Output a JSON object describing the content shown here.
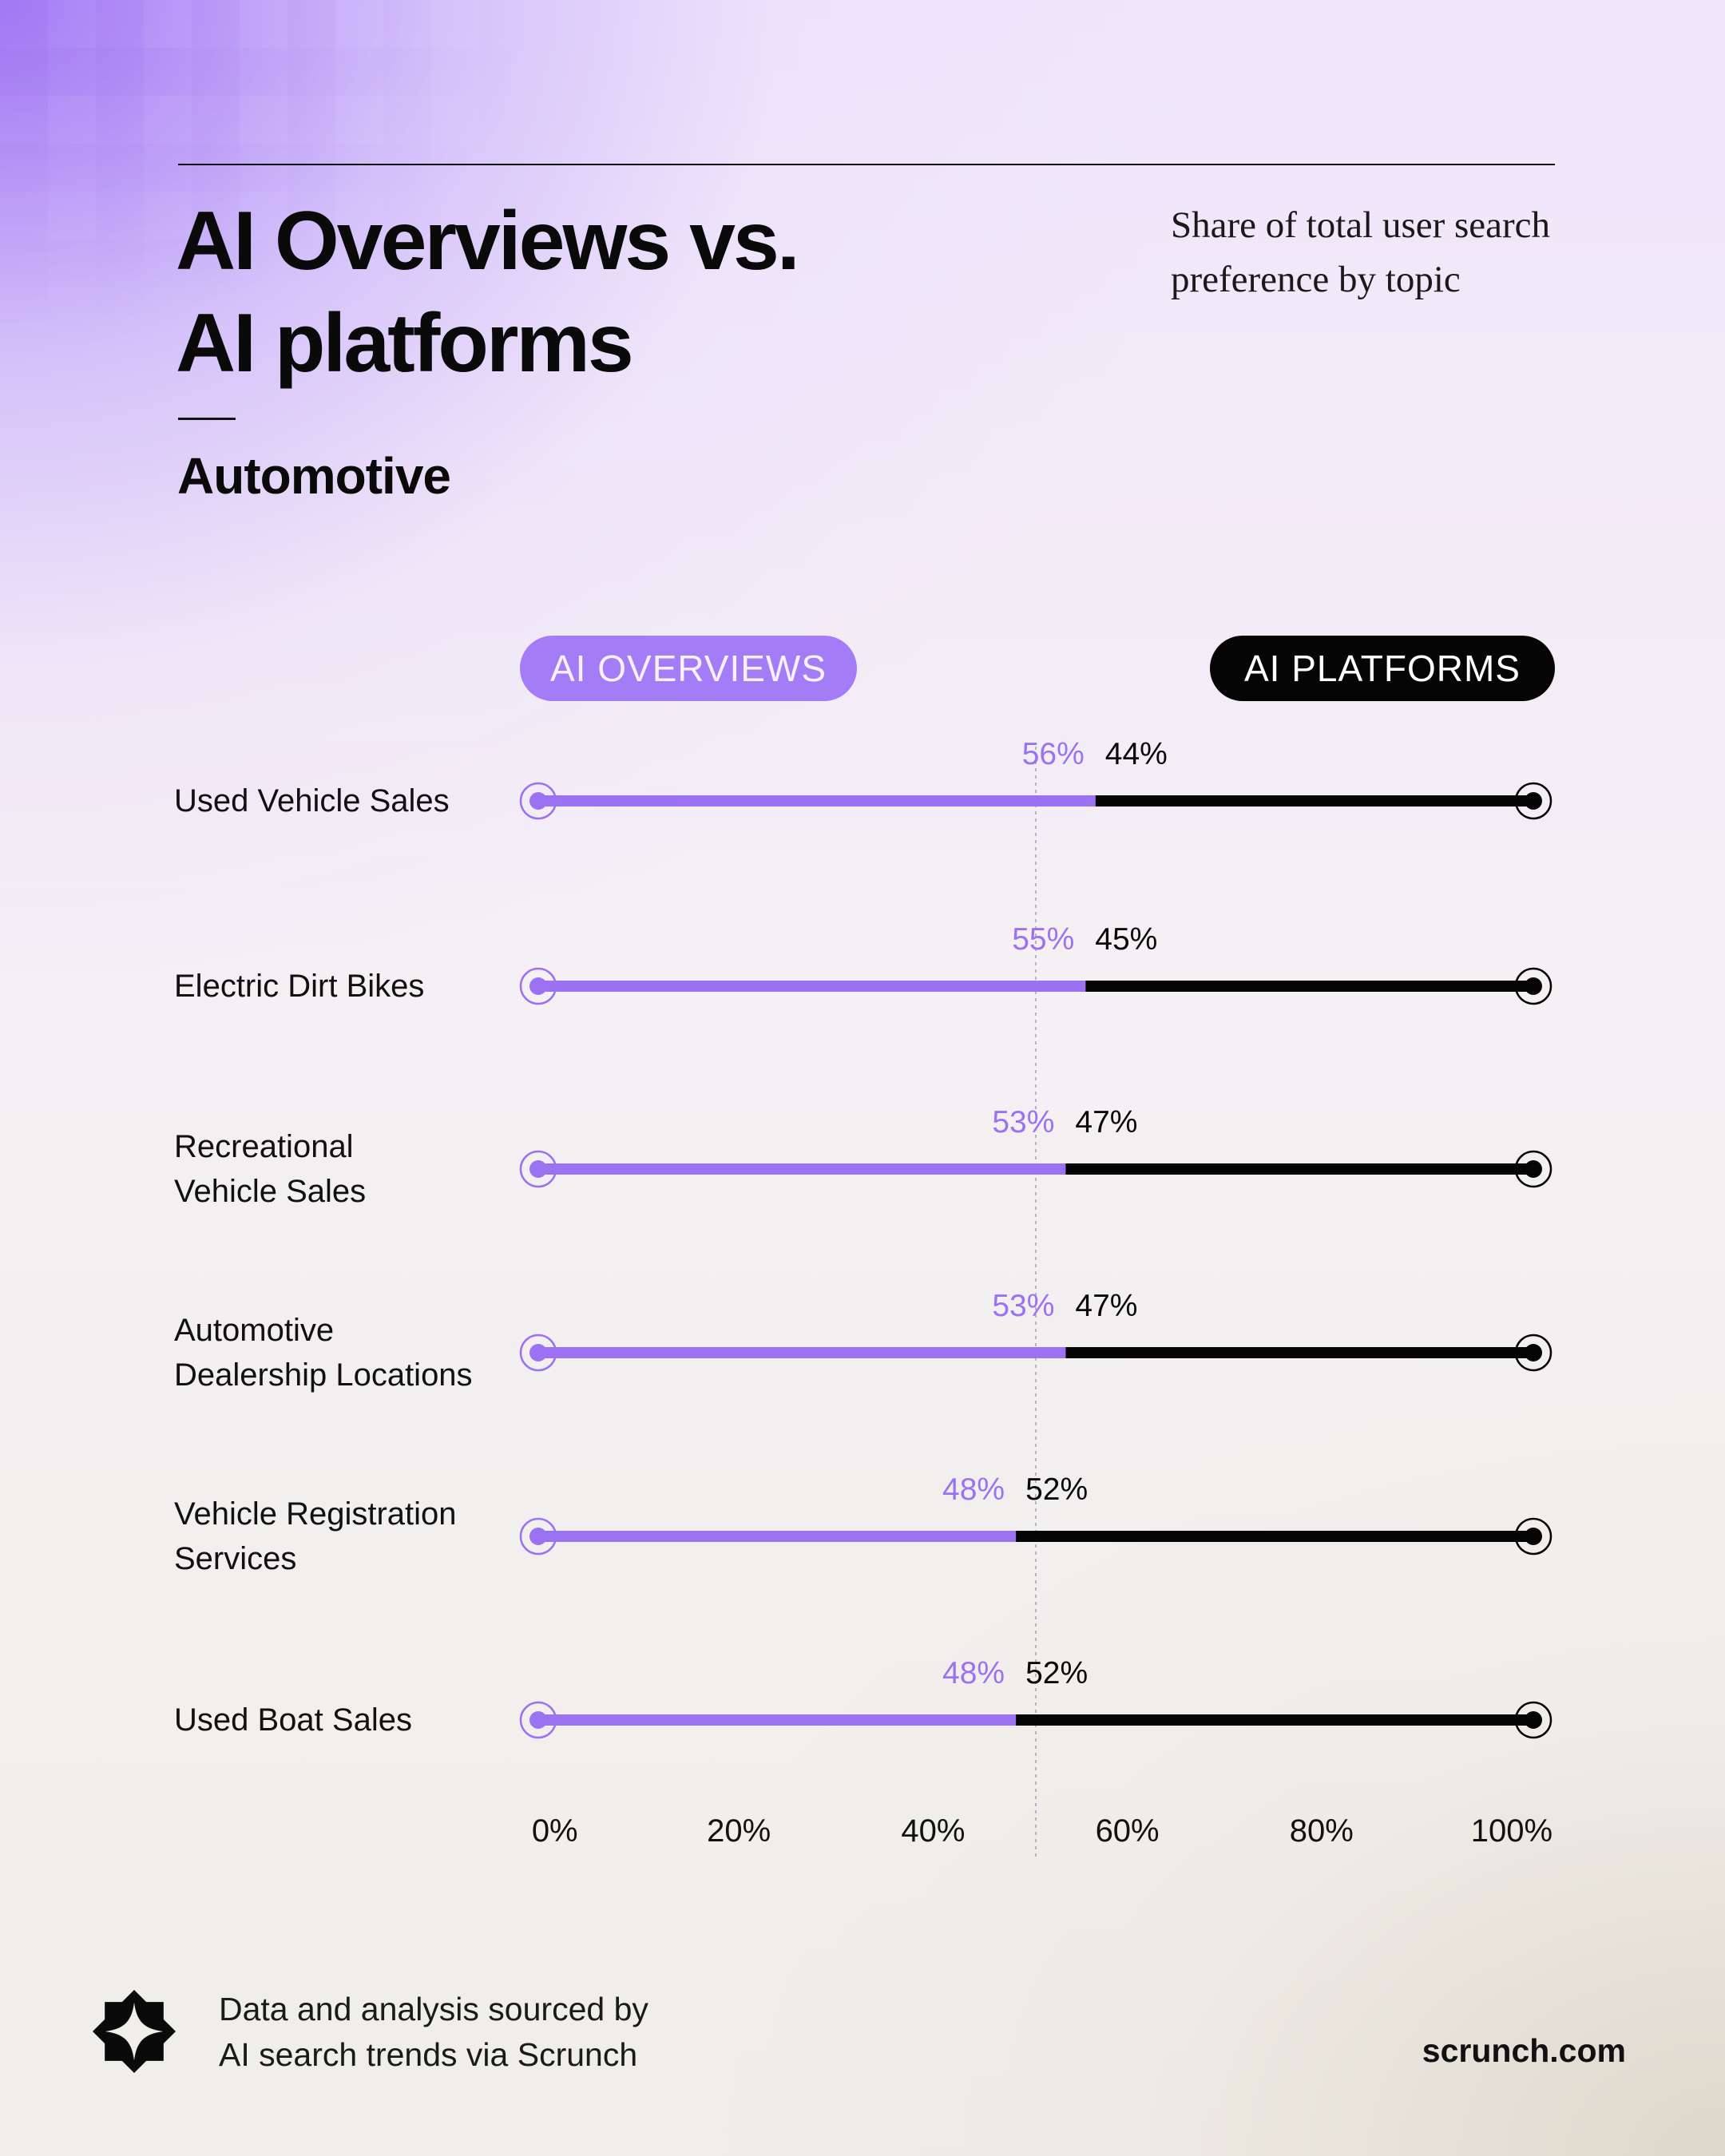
{
  "header": {
    "title_line1": "AI Overviews vs.",
    "title_line2": "AI platforms",
    "subtitle_line1": "Share of total user search",
    "subtitle_line2": "preference by topic",
    "section": "Automotive"
  },
  "legend": {
    "overviews": "AI OVERVIEWS",
    "platforms": "AI PLATFORMS"
  },
  "footer": {
    "source_line1": "Data and analysis sourced by",
    "source_line2": "AI search trends via Scrunch",
    "site": "scrunch.com",
    "logo_icon": "four-point-star-icon"
  },
  "colors": {
    "ai_overviews": "#9b72f2",
    "ai_platforms": "#050505"
  },
  "chart_data": {
    "type": "bar",
    "orientation": "horizontal",
    "stacked": true,
    "categories": [
      [
        "Used Vehicle Sales"
      ],
      [
        "Electric Dirt Bikes"
      ],
      [
        "Recreational",
        "Vehicle Sales"
      ],
      [
        "Automotive",
        "Dealership Locations"
      ],
      [
        "Vehicle Registration",
        "Services"
      ],
      [
        "Used Boat Sales"
      ]
    ],
    "series": [
      {
        "name": "AI OVERVIEWS",
        "values": [
          56,
          55,
          53,
          53,
          48,
          48
        ],
        "labels": [
          "56%",
          "55%",
          "53%",
          "53%",
          "48%",
          "48%"
        ]
      },
      {
        "name": "AI PLATFORMS",
        "values": [
          44,
          45,
          47,
          47,
          52,
          52
        ],
        "labels": [
          "44%",
          "45%",
          "47%",
          "47%",
          "52%",
          "52%"
        ]
      }
    ],
    "xlim": [
      0,
      100
    ],
    "ticks": [
      "0%",
      "20%",
      "40%",
      "60%",
      "80%",
      "100%"
    ],
    "reference_line": 50
  }
}
